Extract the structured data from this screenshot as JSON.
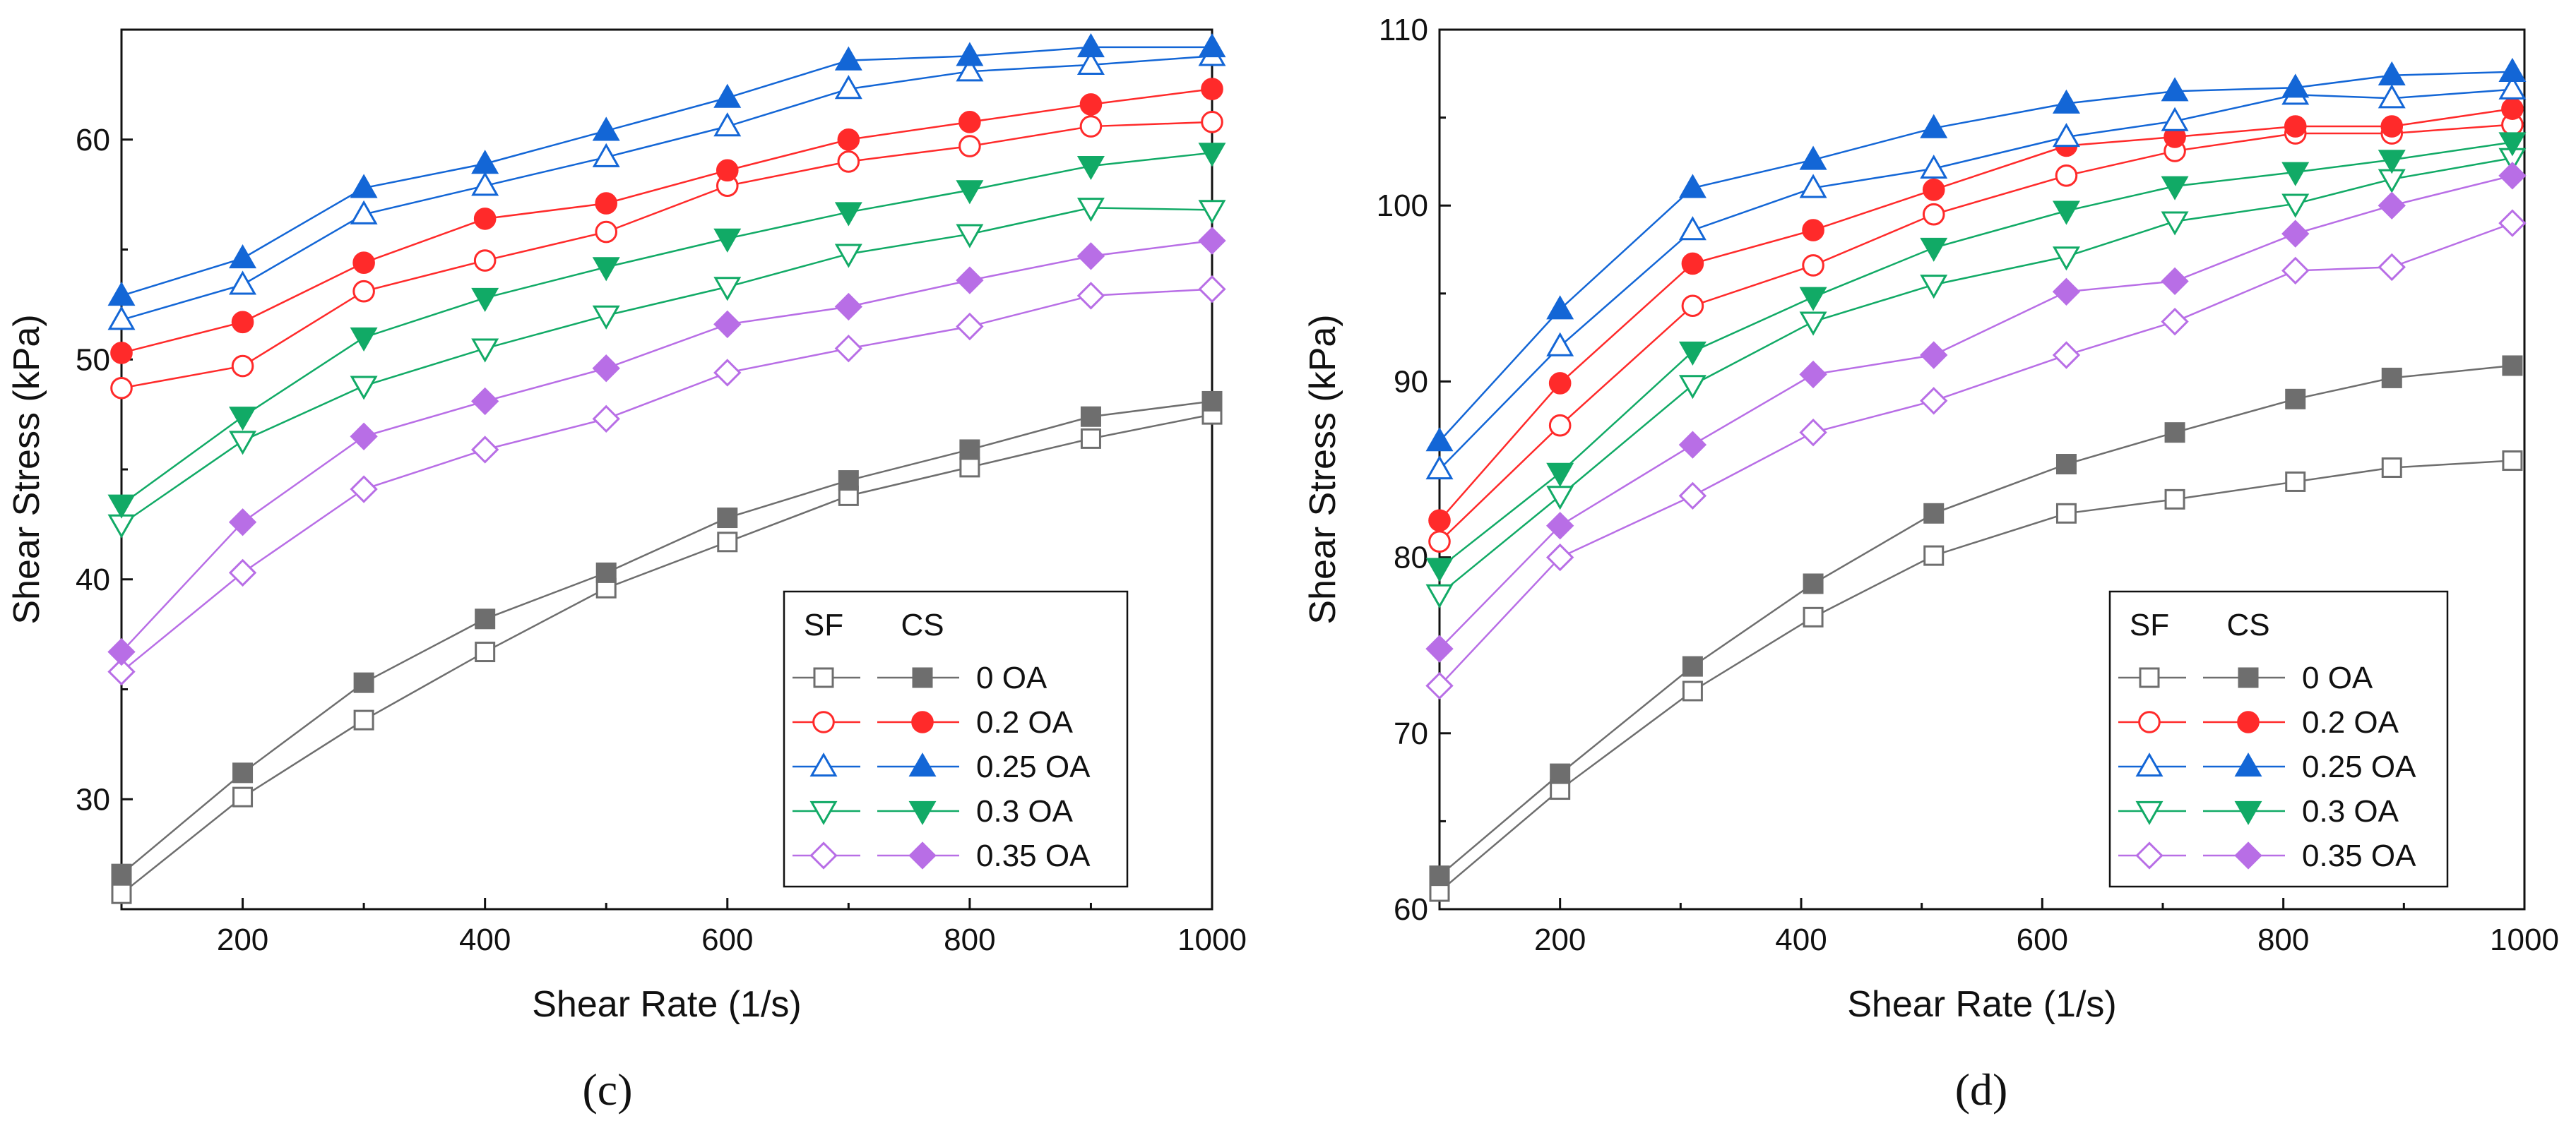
{
  "chart_data": [
    {
      "type": "line",
      "panel_label": "(c)",
      "title": "",
      "xlabel": "Shear Rate (1/s)",
      "ylabel": "Shear Stress (kPa)",
      "xlim": [
        100,
        1000
      ],
      "ylim": [
        25,
        65
      ],
      "xticks": [
        200,
        400,
        600,
        800,
        1000
      ],
      "yticks": [
        30,
        40,
        50,
        60
      ],
      "x": [
        100,
        200,
        300,
        400,
        500,
        600,
        700,
        800,
        900,
        1000
      ],
      "legend": {
        "placement": "bottom-right",
        "header_sf": "SF",
        "header_cs": "CS"
      },
      "series": [
        {
          "name": "0 OA",
          "color": "#6e6e6e",
          "marker": "square",
          "sf": [
            25.7,
            30.1,
            33.6,
            36.7,
            39.6,
            41.7,
            43.8,
            45.1,
            46.4,
            47.5
          ],
          "cs": [
            26.6,
            31.2,
            35.3,
            38.2,
            40.3,
            42.8,
            44.5,
            45.9,
            47.4,
            48.1
          ]
        },
        {
          "name": "0.2 OA",
          "color": "#ff2a2a",
          "marker": "circle",
          "sf": [
            48.7,
            49.7,
            53.1,
            54.5,
            55.8,
            57.9,
            59.0,
            59.7,
            60.6,
            60.8
          ],
          "cs": [
            50.3,
            51.7,
            54.4,
            56.4,
            57.1,
            58.6,
            60.0,
            60.8,
            61.6,
            62.3
          ]
        },
        {
          "name": "0.25 OA",
          "color": "#1366d6",
          "marker": "triangle-up",
          "sf": [
            51.8,
            53.4,
            56.6,
            57.9,
            59.2,
            60.6,
            62.3,
            63.1,
            63.4,
            63.8
          ],
          "cs": [
            52.9,
            54.6,
            57.8,
            58.9,
            60.4,
            61.9,
            63.6,
            63.8,
            64.2,
            64.2
          ]
        },
        {
          "name": "0.3 OA",
          "color": "#11aa66",
          "marker": "triangle-down",
          "sf": [
            42.5,
            46.3,
            48.8,
            50.5,
            52.0,
            53.3,
            54.8,
            55.7,
            56.9,
            56.8
          ],
          "cs": [
            43.4,
            47.4,
            51.0,
            52.8,
            54.2,
            55.5,
            56.7,
            57.7,
            58.8,
            59.4
          ]
        },
        {
          "name": "0.35 OA",
          "color": "#b86ee6",
          "marker": "diamond",
          "sf": [
            35.8,
            40.3,
            44.1,
            45.9,
            47.3,
            49.4,
            50.5,
            51.5,
            52.9,
            53.2
          ],
          "cs": [
            36.7,
            42.6,
            46.5,
            48.1,
            49.6,
            51.6,
            52.4,
            53.6,
            54.7,
            55.4
          ]
        }
      ]
    },
    {
      "type": "line",
      "panel_label": "(d)",
      "title": "",
      "xlabel": "Shear Rate (1/s)",
      "ylabel": "Shear Stress (kPa)",
      "xlim": [
        100,
        1000
      ],
      "ylim": [
        60,
        110
      ],
      "xticks": [
        200,
        400,
        600,
        800,
        1000
      ],
      "yticks": [
        60,
        70,
        80,
        90,
        100,
        110
      ],
      "x": [
        100,
        200,
        310,
        410,
        510,
        620,
        710,
        810,
        890,
        990
      ],
      "legend": {
        "placement": "bottom-right",
        "header_sf": "SF",
        "header_cs": "CS"
      },
      "series": [
        {
          "name": "0 OA",
          "color": "#6e6e6e",
          "marker": "square",
          "sf": [
            61.0,
            66.8,
            72.4,
            76.6,
            80.1,
            82.5,
            83.3,
            84.3,
            85.1,
            85.5
          ],
          "cs": [
            61.9,
            67.7,
            73.8,
            78.5,
            82.5,
            85.3,
            87.1,
            89.0,
            90.2,
            90.9
          ]
        },
        {
          "name": "0.2 OA",
          "color": "#ff2a2a",
          "marker": "circle",
          "sf": [
            80.9,
            87.5,
            94.3,
            96.6,
            99.5,
            101.7,
            103.1,
            104.1,
            104.1,
            104.6
          ],
          "cs": [
            82.1,
            89.9,
            96.7,
            98.6,
            100.9,
            103.4,
            103.9,
            104.5,
            104.5,
            105.5
          ]
        },
        {
          "name": "0.25 OA",
          "color": "#1366d6",
          "marker": "triangle-up",
          "sf": [
            85.0,
            92.0,
            98.6,
            101.0,
            102.1,
            103.9,
            104.8,
            106.3,
            106.1,
            106.6
          ],
          "cs": [
            86.6,
            94.1,
            101.0,
            102.6,
            104.4,
            105.8,
            106.5,
            106.7,
            107.4,
            107.6
          ]
        },
        {
          "name": "0.3 OA",
          "color": "#11aa66",
          "marker": "triangle-down",
          "sf": [
            77.9,
            83.5,
            89.8,
            93.4,
            95.5,
            97.1,
            99.1,
            100.1,
            101.5,
            102.7
          ],
          "cs": [
            79.4,
            84.8,
            91.7,
            94.8,
            97.6,
            99.7,
            101.1,
            101.9,
            102.6,
            103.6
          ]
        },
        {
          "name": "0.35 OA",
          "color": "#b86ee6",
          "marker": "diamond",
          "sf": [
            72.7,
            80.0,
            83.5,
            87.1,
            88.9,
            91.5,
            93.4,
            96.3,
            96.5,
            99.0
          ],
          "cs": [
            74.8,
            81.8,
            86.4,
            90.4,
            91.5,
            95.1,
            95.7,
            98.4,
            100.0,
            101.7
          ]
        }
      ]
    }
  ]
}
